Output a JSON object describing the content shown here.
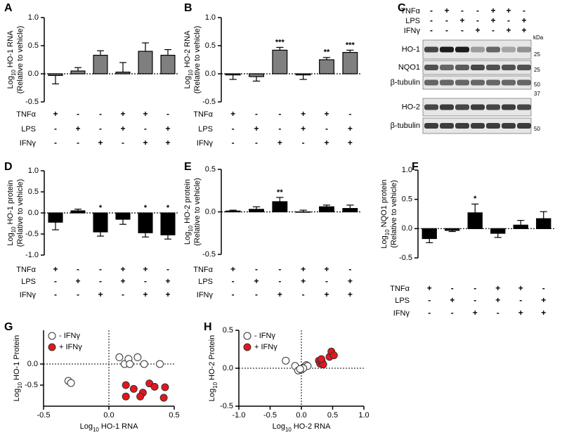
{
  "chart_data": [
    {
      "type": "bar",
      "panel": "A",
      "ylabel_log": "Log",
      "ylabel_base": "10",
      "ylabel": "HO-1 RNA",
      "ylabel2": "(Relative to vehicle)",
      "ylim": [
        -0.5,
        1.0
      ],
      "yticks": [
        -0.5,
        {
          "value": 0,
          "label": "0.0"
        },
        0.5,
        {
          "value": 1,
          "label": "1.0"
        }
      ],
      "color": "#7f7f7f",
      "values": [
        -0.03,
        0.05,
        0.33,
        0.03,
        0.4,
        0.33
      ],
      "errors": [
        0.15,
        0.06,
        0.08,
        0.17,
        0.15,
        0.1
      ],
      "treatments": [
        {
          "name": "TNFα",
          "color": "#000000",
          "marks": [
            "+",
            "-",
            "-",
            "+",
            "+",
            "-"
          ]
        },
        {
          "name": "LPS",
          "color": "#000000",
          "marks": [
            "-",
            "+",
            "-",
            "+",
            "-",
            "+"
          ]
        },
        {
          "name": "IFNγ",
          "color": "#e8141c",
          "marks": [
            "-",
            "-",
            "+",
            "-",
            "+",
            "+"
          ]
        }
      ]
    },
    {
      "type": "bar",
      "panel": "B",
      "ylabel_log": "Log",
      "ylabel_base": "10",
      "ylabel": "HO-2 RNA",
      "ylabel2": "(Relative to vehicle)",
      "ylim": [
        -0.5,
        1.0
      ],
      "yticks": [
        -0.5,
        {
          "value": 0,
          "label": "0.0"
        },
        0.5,
        {
          "value": 1,
          "label": "1.0"
        }
      ],
      "color": "#7f7f7f",
      "values": [
        -0.02,
        -0.05,
        0.42,
        -0.02,
        0.25,
        0.38
      ],
      "errors": [
        0.08,
        0.08,
        0.05,
        0.08,
        0.04,
        0.04
      ],
      "significance": [
        null,
        null,
        "***",
        null,
        "**",
        "***"
      ],
      "treatments": [
        {
          "name": "TNFα",
          "color": "#000000",
          "marks": [
            "+",
            "-",
            "-",
            "+",
            "+",
            "-"
          ]
        },
        {
          "name": "LPS",
          "color": "#000000",
          "marks": [
            "-",
            "+",
            "-",
            "+",
            "-",
            "+"
          ]
        },
        {
          "name": "IFNγ",
          "color": "#e8141c",
          "marks": [
            "-",
            "-",
            "+",
            "-",
            "+",
            "+"
          ]
        }
      ]
    },
    {
      "type": "bar",
      "panel": "D",
      "ylabel_log": "Log",
      "ylabel_base": "10",
      "ylabel": "HO-1 protein",
      "ylabel2": "(Relative to vehicle)",
      "ylim": [
        -1.0,
        1.0
      ],
      "yticks": [
        {
          "value": -1,
          "label": "-1.0"
        },
        -0.5,
        {
          "value": 0,
          "label": "0.0"
        },
        0.5,
        {
          "value": 1,
          "label": "1.0"
        }
      ],
      "color": "#000000",
      "values": [
        -0.22,
        0.05,
        -0.45,
        -0.15,
        -0.47,
        -0.52
      ],
      "errors": [
        0.18,
        0.04,
        0.1,
        0.12,
        0.1,
        0.1
      ],
      "significance": [
        null,
        null,
        "*",
        null,
        "*",
        "*"
      ],
      "treatments": [
        {
          "name": "TNFα",
          "color": "#000000",
          "marks": [
            "+",
            "-",
            "-",
            "+",
            "+",
            "-"
          ]
        },
        {
          "name": "LPS",
          "color": "#000000",
          "marks": [
            "-",
            "+",
            "-",
            "+",
            "-",
            "+"
          ]
        },
        {
          "name": "IFNγ",
          "color": "#e8141c",
          "marks": [
            "-",
            "-",
            "+",
            "-",
            "+",
            "+"
          ]
        }
      ]
    },
    {
      "type": "bar",
      "panel": "E",
      "ylabel_log": "Log",
      "ylabel_base": "10",
      "ylabel": "HO-2 protein",
      "ylabel2": "(Relative to vehicle)",
      "ylim": [
        -0.5,
        0.5
      ],
      "yticks": [
        -0.5,
        {
          "value": 0,
          "label": "0.0"
        },
        0.5
      ],
      "color": "#000000",
      "values": [
        0.01,
        0.03,
        0.12,
        0.0,
        0.06,
        0.04
      ],
      "errors": [
        0.01,
        0.03,
        0.05,
        0.02,
        0.02,
        0.04
      ],
      "significance": [
        null,
        null,
        "**",
        null,
        null,
        null
      ],
      "treatments": [
        {
          "name": "TNFα",
          "color": "#000000",
          "marks": [
            "+",
            "-",
            "-",
            "+",
            "+",
            "-"
          ]
        },
        {
          "name": "LPS",
          "color": "#000000",
          "marks": [
            "-",
            "+",
            "-",
            "+",
            "-",
            "+"
          ]
        },
        {
          "name": "IFNγ",
          "color": "#e8141c",
          "marks": [
            "-",
            "-",
            "+",
            "-",
            "+",
            "+"
          ]
        }
      ]
    },
    {
      "type": "bar",
      "panel": "F",
      "ylabel_log": "Log",
      "ylabel_base": "10",
      "ylabel": "NQO1 protein",
      "ylabel2": "(Relative to vehicle)",
      "ylim": [
        -0.5,
        1.0
      ],
      "yticks": [
        -0.5,
        {
          "value": 0,
          "label": "0.0"
        },
        0.5,
        {
          "value": 1,
          "label": "1.0"
        }
      ],
      "color": "#000000",
      "values": [
        -0.17,
        -0.03,
        0.27,
        -0.08,
        0.06,
        0.17
      ],
      "errors": [
        0.07,
        0.02,
        0.15,
        0.07,
        0.08,
        0.12
      ],
      "significance": [
        null,
        null,
        "*",
        null,
        null,
        null
      ],
      "treatments": [
        {
          "name": "TNFα",
          "color": "#000000",
          "marks": [
            "+",
            "-",
            "-",
            "+",
            "+",
            "-"
          ]
        },
        {
          "name": "LPS",
          "color": "#000000",
          "marks": [
            "-",
            "+",
            "-",
            "+",
            "-",
            "+"
          ]
        },
        {
          "name": "IFNγ",
          "color": "#e8141c",
          "marks": [
            "-",
            "-",
            "+",
            "-",
            "+",
            "+"
          ]
        }
      ]
    },
    {
      "type": "scatter",
      "panel": "G",
      "xlabel_log": "Log",
      "xlabel_base": "10",
      "xlabel": "HO-1 RNA",
      "ylabel_log": "Log",
      "ylabel_base": "10",
      "ylabel": "HO-1 Protein",
      "xlim": [
        -0.5,
        0.5
      ],
      "xticks": [
        -0.5,
        {
          "value": 0,
          "label": "0.0"
        },
        0.5
      ],
      "ylim": [
        -1.0,
        0.8
      ],
      "yticks": [
        -0.5,
        {
          "value": 0,
          "label": "0.0"
        }
      ],
      "series": [
        {
          "name": "- IFNγ",
          "color": "#ffffff",
          "x": [
            -0.31,
            -0.29,
            0.08,
            0.12,
            0.15,
            0.22,
            0.16,
            0.27,
            0.39
          ],
          "values": [
            -0.4,
            -0.45,
            0.16,
            0.0,
            0.12,
            0.16,
            0.0,
            0.0,
            0.0
          ]
        },
        {
          "name": "+ IFNγ",
          "color": "#e8141c",
          "x": [
            0.13,
            0.19,
            0.13,
            0.26,
            0.31,
            0.35,
            0.24,
            0.42,
            0.43
          ],
          "values": [
            -0.5,
            -0.59,
            -0.77,
            -0.68,
            -0.46,
            -0.54,
            -0.77,
            -0.8,
            -0.55
          ]
        }
      ]
    },
    {
      "type": "scatter",
      "panel": "H",
      "xlabel_log": "Log",
      "xlabel_base": "10",
      "xlabel": "HO-2 RNA",
      "ylabel_log": "Log",
      "ylabel_base": "10",
      "ylabel": "HO-2 Protein",
      "xlim": [
        -1.0,
        1.0
      ],
      "xticks": [
        {
          "value": -1,
          "label": "-1.0"
        },
        -0.5,
        {
          "value": 0,
          "label": "0.0"
        },
        0.5,
        {
          "value": 1,
          "label": "1.0"
        }
      ],
      "ylim": [
        -0.5,
        0.5
      ],
      "yticks": [
        -0.5,
        {
          "value": 0,
          "label": "0.0"
        },
        0.5
      ],
      "series": [
        {
          "name": "- IFNγ",
          "color": "#ffffff",
          "x": [
            -0.25,
            -0.1,
            -0.05,
            0.0,
            0.05,
            0.08,
            0.1,
            0.03,
            -0.02
          ],
          "values": [
            0.1,
            0.03,
            -0.03,
            -0.02,
            0.02,
            0.04,
            0.03,
            0.0,
            -0.01
          ]
        },
        {
          "name": "+ IFNγ",
          "color": "#e8141c",
          "x": [
            0.28,
            0.3,
            0.33,
            0.35,
            0.32,
            0.45,
            0.48,
            0.52
          ],
          "values": [
            0.1,
            0.06,
            0.08,
            0.05,
            0.12,
            0.15,
            0.22,
            0.17
          ]
        }
      ]
    }
  ],
  "blot": {
    "panel": "C",
    "unit": "kDa",
    "treatments": [
      {
        "name": "TNFα",
        "color": "#000000",
        "marks": [
          "-",
          "+",
          "-",
          "-",
          "+",
          "+",
          "-"
        ]
      },
      {
        "name": "LPS",
        "color": "#000000",
        "marks": [
          "-",
          "-",
          "+",
          "-",
          "+",
          "-",
          "+"
        ]
      },
      {
        "name": "IFNγ",
        "color": "#e8141c",
        "marks": [
          "-",
          "-",
          "-",
          "+",
          "-",
          "+",
          "+"
        ]
      }
    ],
    "rows": [
      {
        "name": "HO-1",
        "marker": "25"
      },
      {
        "name": "NQO1",
        "marker": "25"
      },
      {
        "name": "β-tubulin",
        "marker": "50"
      },
      {
        "name": "HO-2",
        "marker": "37"
      },
      {
        "name": "β-tubulin",
        "marker": "50"
      }
    ]
  }
}
